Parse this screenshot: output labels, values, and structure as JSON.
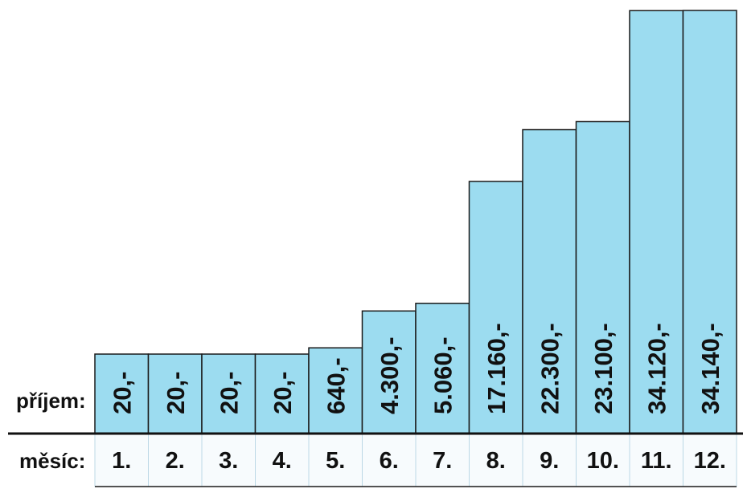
{
  "row_labels": {
    "income": "příjem:",
    "month": "měsíc:"
  },
  "colors": {
    "bar_fill": "#9cdcf0",
    "bar_stroke": "#1a1a1a",
    "month_cell_fill": "#f7fbfd",
    "separator": "#111111"
  },
  "chart_data": {
    "type": "bar",
    "categories": [
      "1.",
      "2.",
      "3.",
      "4.",
      "5.",
      "6.",
      "7.",
      "8.",
      "9.",
      "10.",
      "11.",
      "12."
    ],
    "values": [
      20,
      20,
      20,
      20,
      640,
      4300,
      5060,
      17160,
      22300,
      23100,
      34120,
      34140
    ],
    "data_labels": [
      "20,-",
      "20,-",
      "20,-",
      "20,-",
      "640,-",
      "4.300,-",
      "5.060,-",
      "17.160,-",
      "22.300,-",
      "23.100,-",
      "34.120,-",
      "34.140,-"
    ],
    "title": "",
    "xlabel": "měsíc:",
    "ylabel": "příjem:",
    "grid": false,
    "legend": "none"
  }
}
